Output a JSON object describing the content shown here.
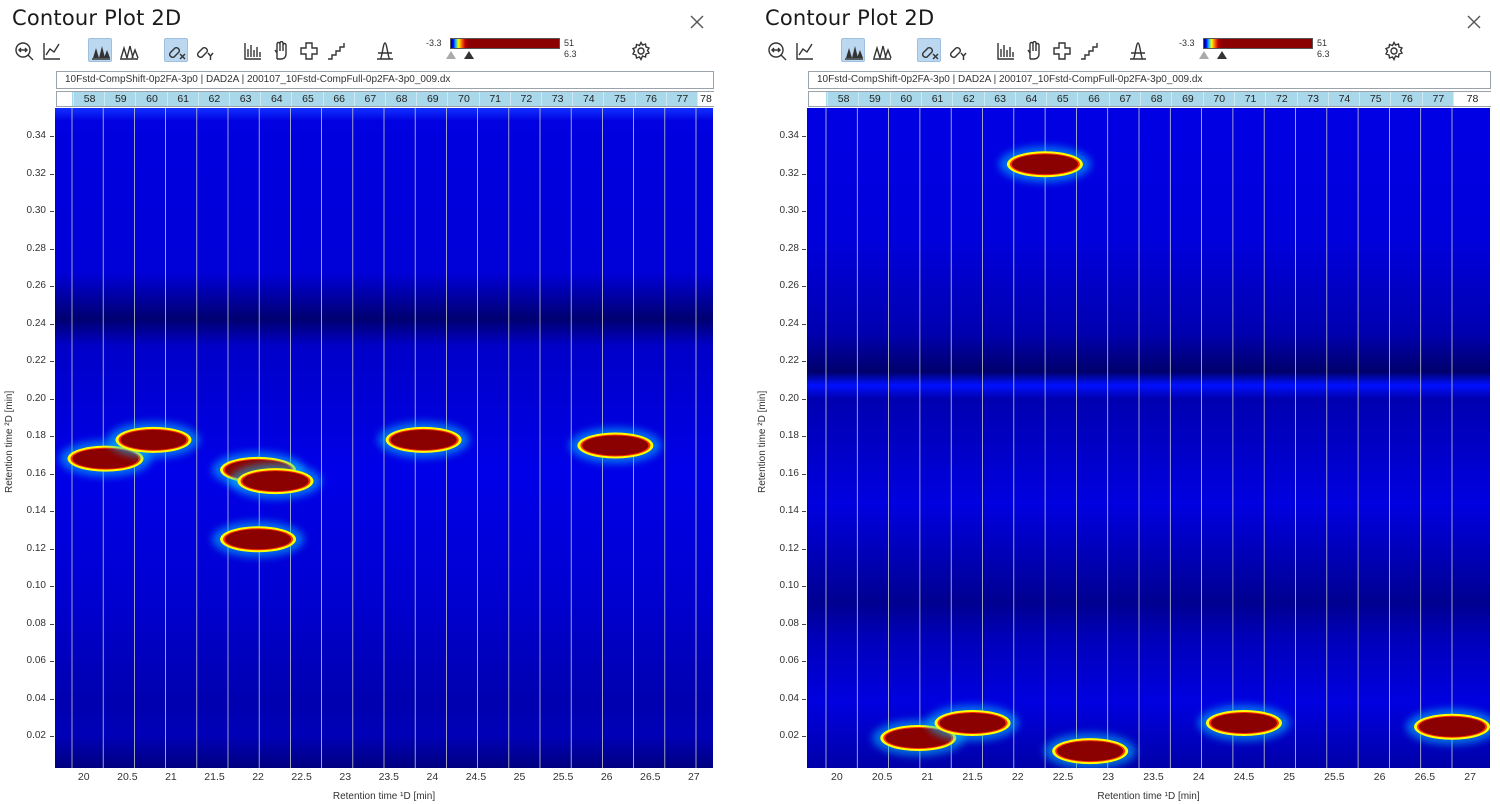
{
  "panels": [
    {
      "title": "Contour Plot 2D",
      "caption": "10Fstd-CompShift-0p2FA-3p0 | DAD2A | 200107_10Fstd-CompFull-0p2FA-3p0_009.dx",
      "color_scale": {
        "min": "-3.3",
        "max": "51",
        "sub": "6.3"
      },
      "modulation_labels": [
        "",
        "58",
        "59",
        "60",
        "61",
        "62",
        "63",
        "64",
        "65",
        "66",
        "67",
        "68",
        "69",
        "70",
        "71",
        "72",
        "73",
        "74",
        "75",
        "76",
        "77",
        "78"
      ],
      "y_axis": {
        "label": "Retention time ²D [min]",
        "ticks": [
          "0.34",
          "0.32",
          "0.30",
          "0.28",
          "0.26",
          "0.24",
          "0.22",
          "0.20",
          "0.18",
          "0.16",
          "0.14",
          "0.12",
          "0.10",
          "0.08",
          "0.06",
          "0.04",
          "0.02"
        ]
      },
      "x_axis": {
        "label": "Retention time ¹D [min]",
        "ticks": [
          "20",
          "20.5",
          "21",
          "21.5",
          "22",
          "22.5",
          "23",
          "23.5",
          "24",
          "24.5",
          "25",
          "25.5",
          "26",
          "26.5",
          "27"
        ]
      },
      "peaks_minutes": [
        {
          "x": 20.25,
          "y": 0.168
        },
        {
          "x": 20.8,
          "y": 0.178
        },
        {
          "x": 22.0,
          "y": 0.162
        },
        {
          "x": 22.2,
          "y": 0.156
        },
        {
          "x": 22.0,
          "y": 0.125
        },
        {
          "x": 23.9,
          "y": 0.178
        },
        {
          "x": 26.1,
          "y": 0.175
        }
      ]
    },
    {
      "title": "Contour Plot 2D",
      "caption": "10Fstd-CompShift-0p2FA-3p0 | DAD2A | 200107_10Fstd-CompFull-0p2FA-3p0_009.dx",
      "color_scale": {
        "min": "-3.3",
        "max": "51",
        "sub": "6.3"
      },
      "modulation_labels": [
        "",
        "58",
        "59",
        "60",
        "61",
        "62",
        "63",
        "64",
        "65",
        "66",
        "67",
        "68",
        "69",
        "70",
        "71",
        "72",
        "73",
        "74",
        "75",
        "76",
        "77",
        "78"
      ],
      "y_axis": {
        "label": "Retention time ²D [min]",
        "ticks": [
          "0.34",
          "0.32",
          "0.30",
          "0.28",
          "0.26",
          "0.24",
          "0.22",
          "0.20",
          "0.18",
          "0.16",
          "0.14",
          "0.12",
          "0.10",
          "0.08",
          "0.06",
          "0.04",
          "0.02"
        ]
      },
      "x_axis": {
        "label": "Retention time ¹D [min]",
        "ticks": [
          "20",
          "20.5",
          "21",
          "21.5",
          "22",
          "22.5",
          "23",
          "23.5",
          "24",
          "24.5",
          "25",
          "25.5",
          "26",
          "26.5",
          "27"
        ]
      },
      "peaks_minutes": [
        {
          "x": 22.3,
          "y": 0.325
        },
        {
          "x": 20.9,
          "y": 0.019
        },
        {
          "x": 21.5,
          "y": 0.027
        },
        {
          "x": 22.8,
          "y": 0.012
        },
        {
          "x": 24.5,
          "y": 0.027
        },
        {
          "x": 26.8,
          "y": 0.025
        }
      ]
    }
  ],
  "toolbar_icons": [
    "zoom-reset-icon",
    "chart-line-icon",
    "peaks-filled-icon",
    "peaks-outline-icon",
    "link-x-icon",
    "link-y-icon",
    "histogram-icon",
    "hand-pan-icon",
    "crosshair-icon",
    "step-icon",
    "peak-shape-icon",
    "settings-gear-icon"
  ]
}
